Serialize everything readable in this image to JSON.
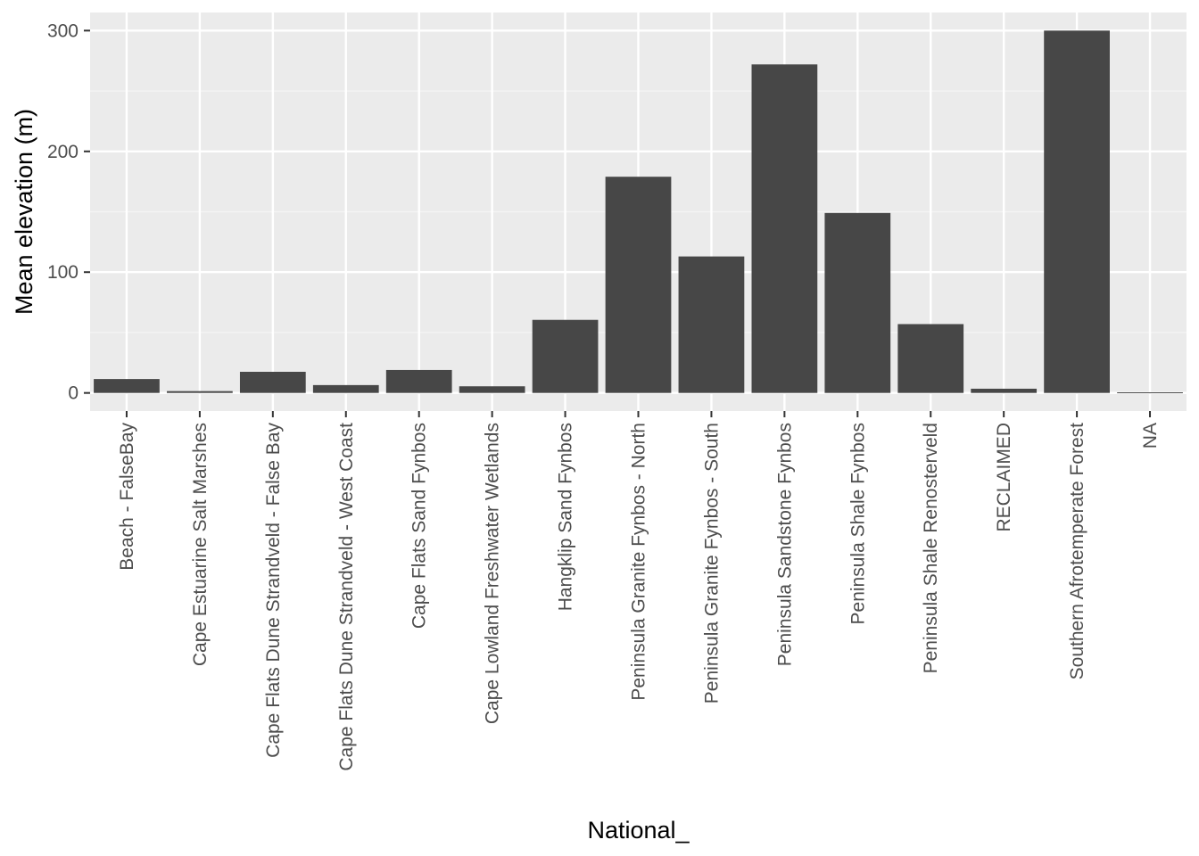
{
  "chart_data": {
    "type": "bar",
    "title": "",
    "xlabel": "National_",
    "ylabel": "Mean elevation (m)",
    "categories": [
      "Beach - FalseBay",
      "Cape Estuarine Salt Marshes",
      "Cape Flats Dune Strandveld - False Bay",
      "Cape Flats Dune Strandveld - West Coast",
      "Cape Flats Sand Fynbos",
      "Cape Lowland Freshwater Wetlands",
      "Hangklip Sand Fynbos",
      "Peninsula Granite Fynbos - North",
      "Peninsula Granite Fynbos - South",
      "Peninsula Sandstone Fynbos",
      "Peninsula Shale Fynbos",
      "Peninsula Shale Renosterveld",
      "RECLAIMED",
      "Southern Afrotemperate Forest",
      "NA"
    ],
    "values": [
      11.5,
      1.5,
      17.5,
      6.5,
      19,
      5.5,
      60.5,
      179,
      113,
      272,
      149,
      57,
      3.5,
      300,
      0.5
    ],
    "yticks": [
      0,
      100,
      200,
      300
    ],
    "ylim": [
      -15,
      315
    ],
    "grid": true,
    "legend": "none",
    "colors": {
      "bar": "#474747",
      "panel": "#ebebeb",
      "grid_major": "#ffffff",
      "grid_minor": "#f5f5f5"
    }
  }
}
